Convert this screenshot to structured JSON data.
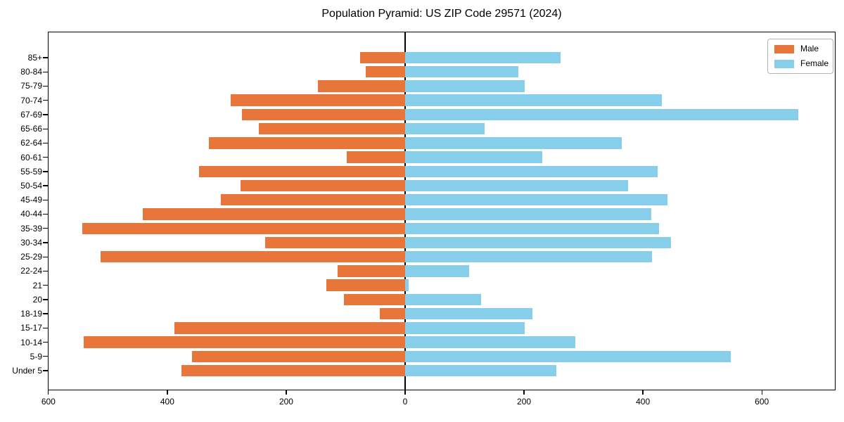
{
  "title": "Population Pyramid: US ZIP Code 29571 (2024)",
  "legend": {
    "male_label": "Male",
    "female_label": "Female"
  },
  "colors": {
    "male": "#e8763b",
    "female": "#87ceeb",
    "axis": "#000000"
  },
  "chart_data": {
    "type": "bar",
    "orientation": "horizontal-pyramid",
    "title": "Population Pyramid: US ZIP Code 29571 (2024)",
    "categories_top_to_bottom": [
      "85+",
      "80-84",
      "75-79",
      "70-74",
      "67-69",
      "65-66",
      "62-64",
      "60-61",
      "55-59",
      "50-54",
      "45-49",
      "40-44",
      "35-39",
      "30-34",
      "25-29",
      "22-24",
      "21",
      "20",
      "18-19",
      "15-17",
      "10-14",
      "5-9",
      "Under 5"
    ],
    "series": [
      {
        "name": "Male",
        "side": "left",
        "values": [
          76,
          66,
          147,
          294,
          275,
          246,
          330,
          98,
          347,
          277,
          310,
          441,
          543,
          236,
          512,
          114,
          133,
          103,
          43,
          388,
          541,
          359,
          376
        ]
      },
      {
        "name": "Female",
        "side": "right",
        "values": [
          262,
          190,
          201,
          432,
          661,
          134,
          364,
          231,
          425,
          375,
          441,
          414,
          427,
          447,
          415,
          108,
          6,
          128,
          214,
          201,
          286,
          548,
          254
        ]
      }
    ],
    "x_ticks": [
      -600,
      -400,
      -200,
      0,
      200,
      400,
      600
    ],
    "x_tick_labels": [
      "600",
      "400",
      "200",
      "0",
      "200",
      "400",
      "600"
    ],
    "xlim": [
      -601,
      724
    ],
    "grid": false,
    "legend_position": "upper right",
    "center_axvline": 0
  }
}
